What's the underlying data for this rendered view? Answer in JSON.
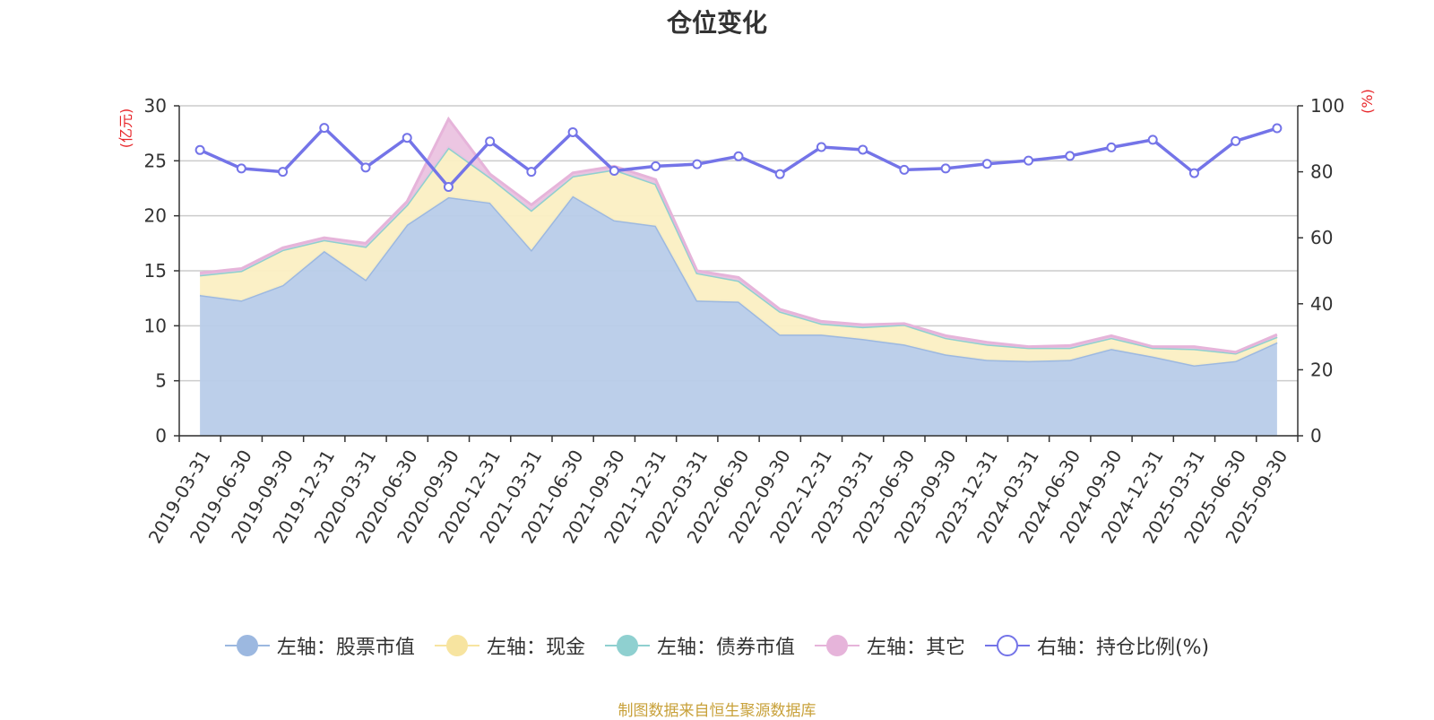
{
  "chart_data": {
    "type": "area",
    "title": "仓位变化",
    "left_axis_label": "(亿元)",
    "right_axis_label": "(%)",
    "left_ylim": [
      0,
      30
    ],
    "left_ticks": [
      "0",
      "5",
      "10",
      "15",
      "20",
      "25",
      "30"
    ],
    "right_ylim": [
      0,
      100
    ],
    "right_ticks": [
      "0",
      "20",
      "40",
      "60",
      "80",
      "100"
    ],
    "categories": [
      "2019-03-31",
      "2019-06-30",
      "2019-09-30",
      "2019-12-31",
      "2020-03-31",
      "2020-06-30",
      "2020-09-30",
      "2020-12-31",
      "2021-03-31",
      "2021-06-30",
      "2021-09-30",
      "2021-12-31",
      "2022-03-31",
      "2022-06-30",
      "2022-09-30",
      "2022-12-31",
      "2023-03-31",
      "2023-06-30",
      "2023-09-30",
      "2023-12-31",
      "2024-03-31",
      "2024-06-30",
      "2024-09-30",
      "2024-12-31",
      "2025-03-31",
      "2025-06-30",
      "2025-09-30"
    ],
    "series": [
      {
        "name": "左轴：股票市值",
        "axis": "left",
        "stack": true,
        "color": "#9cb8e0",
        "fill": "#b8cce9",
        "values": [
          12.8,
          12.3,
          13.7,
          16.8,
          14.2,
          19.2,
          21.7,
          21.2,
          16.9,
          21.8,
          19.6,
          19.1,
          12.3,
          12.2,
          9.2,
          9.2,
          8.8,
          8.3,
          7.4,
          6.9,
          6.8,
          6.9,
          7.9,
          7.2,
          6.4,
          6.8,
          8.5
        ]
      },
      {
        "name": "左轴：现金",
        "axis": "left",
        "stack": true,
        "color": "#f7e4a0",
        "fill": "#fbefc3",
        "values": [
          1.8,
          2.7,
          3.2,
          1.0,
          3.0,
          1.8,
          4.5,
          2.3,
          3.6,
          1.8,
          4.6,
          3.8,
          2.5,
          1.9,
          2.1,
          1.0,
          1.1,
          1.8,
          1.5,
          1.4,
          1.2,
          1.1,
          1.0,
          0.8,
          1.5,
          0.7,
          0.5
        ]
      },
      {
        "name": "左轴：债券市值",
        "axis": "left",
        "stack": true,
        "color": "#8fd0d0",
        "fill": "#a8dcdc",
        "values": [
          0,
          0,
          0,
          0,
          0,
          0,
          0,
          0,
          0,
          0,
          0,
          0,
          0,
          0,
          0,
          0,
          0,
          0,
          0,
          0,
          0,
          0,
          0,
          0,
          0,
          0,
          0
        ]
      },
      {
        "name": "左轴：其它",
        "axis": "left",
        "stack": true,
        "color": "#e6b4da",
        "fill": "#ebc3e0",
        "values": [
          0.2,
          0.2,
          0.2,
          0.2,
          0.3,
          0.3,
          2.6,
          0.3,
          0.5,
          0.3,
          0.3,
          0.4,
          0.2,
          0.3,
          0.2,
          0.2,
          0.2,
          0.1,
          0.2,
          0.2,
          0.1,
          0.2,
          0.2,
          0.1,
          0.2,
          0.1,
          0.2
        ]
      },
      {
        "name": "右轴：持仓比例(%)",
        "axis": "right",
        "type": "line",
        "color": "#7474e8",
        "values": [
          86.6,
          81,
          80,
          93.3,
          81.3,
          90.3,
          75.4,
          89.2,
          80,
          92,
          80.3,
          81.7,
          82.3,
          84.7,
          79.3,
          87.5,
          86.7,
          80.6,
          81,
          82.4,
          83.4,
          84.8,
          87.4,
          89.7,
          79.6,
          89.3,
          93.2
        ]
      }
    ]
  },
  "legend": [
    {
      "label": "左轴：股票市值",
      "line": "#9cb8e0",
      "fill": "#9cb8e0",
      "border": "#9cb8e0"
    },
    {
      "label": "左轴：现金",
      "line": "#f7e4a0",
      "fill": "#f7e4a0",
      "border": "#f7e4a0"
    },
    {
      "label": "左轴：债券市值",
      "line": "#8fd0d0",
      "fill": "#8fd0d0",
      "border": "#8fd0d0"
    },
    {
      "label": "左轴：其它",
      "line": "#e6b4da",
      "fill": "#e6b4da",
      "border": "#e6b4da"
    },
    {
      "label": "右轴：持仓比例(%)",
      "line": "#7474e8",
      "fill": "#ffffff",
      "border": "#7474e8"
    }
  ],
  "footer": "制图数据来自恒生聚源数据库"
}
